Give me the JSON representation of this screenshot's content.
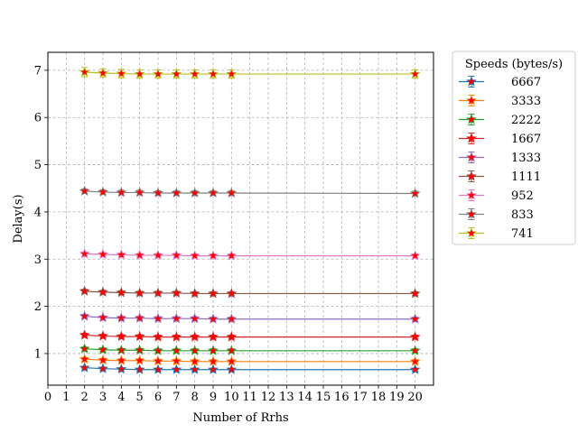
{
  "chart_data": {
    "type": "line",
    "xlabel": "Number of Rrhs",
    "ylabel": "Delay(s)",
    "xlim": [
      0,
      21
    ],
    "ylim": [
      0.33,
      7.38
    ],
    "x_ticks": [
      0,
      1,
      2,
      3,
      4,
      5,
      6,
      7,
      8,
      9,
      10,
      11,
      12,
      13,
      14,
      15,
      16,
      17,
      18,
      19,
      20
    ],
    "y_ticks": [
      1,
      2,
      3,
      4,
      5,
      6,
      7
    ],
    "grid": true,
    "legend_title": "Speeds (bytes/s)",
    "legend_position": "outside-right-top",
    "marker": "star",
    "marker_color": "#ff0000",
    "x": [
      2,
      3,
      4,
      5,
      6,
      7,
      8,
      9,
      10,
      20
    ],
    "series": [
      {
        "name": "6667",
        "color": "#1f77b4",
        "values": [
          0.7,
          0.68,
          0.67,
          0.66,
          0.66,
          0.66,
          0.66,
          0.66,
          0.66,
          0.66
        ],
        "error": [
          0.03,
          0.03,
          0.03,
          0.03,
          0.03,
          0.03,
          0.03,
          0.03,
          0.03,
          0.03
        ]
      },
      {
        "name": "3333",
        "color": "#ff7f0e",
        "values": [
          0.88,
          0.86,
          0.85,
          0.85,
          0.84,
          0.84,
          0.83,
          0.83,
          0.83,
          0.83
        ],
        "error": [
          0.04,
          0.04,
          0.04,
          0.04,
          0.04,
          0.04,
          0.04,
          0.04,
          0.04,
          0.04
        ]
      },
      {
        "name": "2222",
        "color": "#2ca02c",
        "values": [
          1.1,
          1.08,
          1.07,
          1.07,
          1.06,
          1.06,
          1.06,
          1.06,
          1.06,
          1.06
        ],
        "error": [
          0.04,
          0.04,
          0.04,
          0.04,
          0.04,
          0.04,
          0.04,
          0.04,
          0.04,
          0.04
        ]
      },
      {
        "name": "1667",
        "color": "#d62728",
        "values": [
          1.39,
          1.37,
          1.36,
          1.36,
          1.35,
          1.35,
          1.35,
          1.35,
          1.35,
          1.35
        ],
        "error": [
          0.04,
          0.04,
          0.04,
          0.04,
          0.04,
          0.04,
          0.04,
          0.04,
          0.04,
          0.04
        ]
      },
      {
        "name": "1333",
        "color": "#9467bd",
        "values": [
          1.79,
          1.76,
          1.75,
          1.75,
          1.74,
          1.74,
          1.74,
          1.73,
          1.73,
          1.73
        ],
        "error": [
          0.04,
          0.04,
          0.04,
          0.04,
          0.04,
          0.04,
          0.04,
          0.04,
          0.04,
          0.04
        ]
      },
      {
        "name": "1111",
        "color": "#8c564b",
        "values": [
          2.32,
          2.3,
          2.29,
          2.28,
          2.28,
          2.28,
          2.27,
          2.27,
          2.27,
          2.27
        ],
        "error": [
          0.04,
          0.04,
          0.04,
          0.04,
          0.04,
          0.04,
          0.04,
          0.04,
          0.04,
          0.04
        ]
      },
      {
        "name": "952",
        "color": "#e377c2",
        "values": [
          3.11,
          3.1,
          3.09,
          3.08,
          3.08,
          3.08,
          3.07,
          3.07,
          3.07,
          3.07
        ],
        "error": [
          0.04,
          0.04,
          0.04,
          0.04,
          0.04,
          0.04,
          0.04,
          0.04,
          0.04,
          0.04
        ]
      },
      {
        "name": "833",
        "color": "#7f7f7f",
        "values": [
          4.44,
          4.42,
          4.41,
          4.41,
          4.4,
          4.4,
          4.4,
          4.4,
          4.4,
          4.39
        ],
        "error": [
          0.05,
          0.05,
          0.05,
          0.05,
          0.05,
          0.05,
          0.05,
          0.05,
          0.05,
          0.05
        ]
      },
      {
        "name": "741",
        "color": "#bcbd22",
        "values": [
          6.96,
          6.94,
          6.93,
          6.92,
          6.92,
          6.92,
          6.92,
          6.92,
          6.92,
          6.92
        ],
        "error": [
          0.1,
          0.09,
          0.09,
          0.09,
          0.09,
          0.09,
          0.09,
          0.09,
          0.09,
          0.09
        ]
      }
    ]
  }
}
